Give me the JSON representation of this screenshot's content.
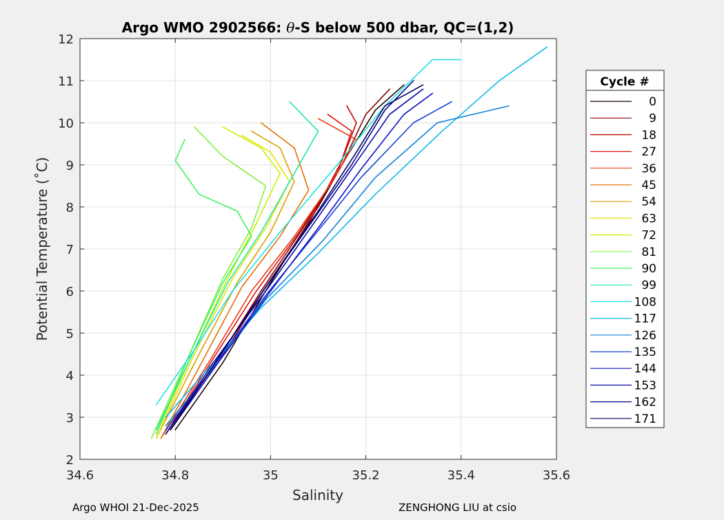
{
  "chart_data": {
    "type": "line",
    "title_prefix": "Argo WMO 2902566: ",
    "title_theta": "θ",
    "title_suffix": "-S below 500 dbar,  QC=(1,2)",
    "xlabel": "Salinity",
    "ylabel": "Potential Temperature (˚C)",
    "xlim": [
      34.6,
      35.6
    ],
    "ylim": [
      2,
      12
    ],
    "xticks": [
      34.6,
      34.8,
      35.0,
      35.2,
      35.4,
      35.6
    ],
    "xtick_labels": [
      "34.6",
      "34.8",
      "35",
      "35.2",
      "35.4",
      "35.6"
    ],
    "yticks": [
      2,
      3,
      4,
      5,
      6,
      7,
      8,
      9,
      10,
      11,
      12
    ],
    "ytick_labels": [
      "2",
      "3",
      "4",
      "5",
      "6",
      "7",
      "8",
      "9",
      "10",
      "11",
      "12"
    ],
    "grid": true,
    "legend": {
      "title": "Cycle #",
      "placement": "right",
      "entries": [
        "0",
        "9",
        "18",
        "27",
        "36",
        "45",
        "54",
        "63",
        "72",
        "81",
        "90",
        "99",
        "108",
        "117",
        "126",
        "135",
        "144",
        "153",
        "162",
        "171"
      ],
      "colors": [
        "#1a0000",
        "#8b0000",
        "#c00000",
        "#dd1010",
        "#e83a10",
        "#e07000",
        "#d8a000",
        "#e8e000",
        "#c8f000",
        "#80f040",
        "#40f060",
        "#20e8a0",
        "#20e0e0",
        "#10b8e8",
        "#1080d8",
        "#1040d0",
        "#1010c8",
        "#0808a8",
        "#000090",
        "#000060"
      ]
    },
    "series": [
      {
        "name": "0",
        "color": "#1a0000",
        "ts": [
          [
            34.8,
            2.7
          ],
          [
            34.9,
            4.3
          ],
          [
            35.0,
            6.2
          ],
          [
            35.1,
            8.0
          ],
          [
            35.16,
            9.2
          ],
          [
            35.22,
            10.3
          ],
          [
            35.28,
            10.9
          ]
        ]
      },
      {
        "name": "9",
        "color": "#8b0000",
        "ts": [
          [
            34.78,
            2.6
          ],
          [
            34.88,
            4.2
          ],
          [
            34.98,
            6.0
          ],
          [
            35.08,
            7.7
          ],
          [
            35.15,
            9.0
          ],
          [
            35.2,
            10.2
          ],
          [
            35.25,
            10.8
          ]
        ]
      },
      {
        "name": "18",
        "color": "#c00000",
        "ts": [
          [
            34.79,
            2.7
          ],
          [
            34.89,
            4.3
          ],
          [
            34.99,
            6.1
          ],
          [
            35.08,
            7.6
          ],
          [
            35.15,
            9.1
          ],
          [
            35.18,
            10.0
          ],
          [
            35.16,
            10.4
          ]
        ]
      },
      {
        "name": "27",
        "color": "#dd1010",
        "ts": [
          [
            34.78,
            2.6
          ],
          [
            34.88,
            4.4
          ],
          [
            34.97,
            6.0
          ],
          [
            35.06,
            7.4
          ],
          [
            35.14,
            8.8
          ],
          [
            35.17,
            9.8
          ],
          [
            35.12,
            10.2
          ]
        ]
      },
      {
        "name": "36",
        "color": "#e83a10",
        "ts": [
          [
            34.77,
            2.5
          ],
          [
            34.87,
            4.3
          ],
          [
            34.96,
            6.0
          ],
          [
            35.05,
            7.3
          ],
          [
            35.13,
            8.6
          ],
          [
            35.18,
            9.6
          ],
          [
            35.1,
            10.1
          ]
        ]
      },
      {
        "name": "45",
        "color": "#e07000",
        "ts": [
          [
            34.77,
            2.5
          ],
          [
            34.86,
            4.4
          ],
          [
            34.94,
            6.1
          ],
          [
            35.02,
            7.3
          ],
          [
            35.08,
            8.4
          ],
          [
            35.05,
            9.4
          ],
          [
            34.98,
            10.0
          ]
        ]
      },
      {
        "name": "54",
        "color": "#d8a000",
        "ts": [
          [
            34.76,
            2.5
          ],
          [
            34.85,
            4.5
          ],
          [
            34.93,
            6.2
          ],
          [
            35.0,
            7.4
          ],
          [
            35.05,
            8.6
          ],
          [
            35.02,
            9.4
          ],
          [
            34.96,
            9.8
          ]
        ]
      },
      {
        "name": "63",
        "color": "#e8e000",
        "ts": [
          [
            34.76,
            2.5
          ],
          [
            34.84,
            4.5
          ],
          [
            34.92,
            6.3
          ],
          [
            34.99,
            7.5
          ],
          [
            35.04,
            8.6
          ],
          [
            35.0,
            9.3
          ],
          [
            34.94,
            9.7
          ]
        ]
      },
      {
        "name": "72",
        "color": "#c8f000",
        "ts": [
          [
            34.76,
            2.6
          ],
          [
            34.84,
            4.6
          ],
          [
            34.91,
            6.3
          ],
          [
            34.97,
            7.6
          ],
          [
            35.02,
            8.8
          ],
          [
            34.98,
            9.4
          ],
          [
            34.9,
            9.9
          ]
        ]
      },
      {
        "name": "81",
        "color": "#80f040",
        "ts": [
          [
            34.75,
            2.5
          ],
          [
            34.83,
            4.5
          ],
          [
            34.9,
            6.3
          ],
          [
            34.96,
            7.5
          ],
          [
            34.99,
            8.5
          ],
          [
            34.9,
            9.2
          ],
          [
            34.84,
            9.9
          ]
        ]
      },
      {
        "name": "90",
        "color": "#40f060",
        "ts": [
          [
            34.76,
            2.6
          ],
          [
            34.83,
            4.5
          ],
          [
            34.9,
            6.2
          ],
          [
            34.96,
            7.3
          ],
          [
            34.93,
            7.9
          ],
          [
            34.85,
            8.3
          ],
          [
            34.8,
            9.1
          ],
          [
            34.82,
            9.6
          ]
        ]
      },
      {
        "name": "99",
        "color": "#20e8a0",
        "ts": [
          [
            34.76,
            2.7
          ],
          [
            34.84,
            4.6
          ],
          [
            34.91,
            6.2
          ],
          [
            34.98,
            7.4
          ],
          [
            35.05,
            8.8
          ],
          [
            35.1,
            9.8
          ],
          [
            35.04,
            10.5
          ]
        ]
      },
      {
        "name": "108",
        "color": "#20e0e0",
        "ts": [
          [
            34.76,
            3.3
          ],
          [
            34.84,
            4.6
          ],
          [
            34.92,
            6.0
          ],
          [
            35.02,
            7.4
          ],
          [
            35.14,
            9.0
          ],
          [
            35.24,
            10.4
          ],
          [
            35.34,
            11.5
          ],
          [
            35.4,
            11.5
          ]
        ]
      },
      {
        "name": "117",
        "color": "#10b8e8",
        "ts": [
          [
            34.78,
            3.0
          ],
          [
            34.88,
            4.3
          ],
          [
            34.98,
            5.6
          ],
          [
            35.1,
            6.9
          ],
          [
            35.22,
            8.3
          ],
          [
            35.36,
            9.8
          ],
          [
            35.48,
            11.0
          ],
          [
            35.58,
            11.8
          ]
        ]
      },
      {
        "name": "126",
        "color": "#1080d8",
        "ts": [
          [
            34.78,
            2.8
          ],
          [
            34.89,
            4.3
          ],
          [
            34.99,
            5.8
          ],
          [
            35.11,
            7.2
          ],
          [
            35.22,
            8.7
          ],
          [
            35.35,
            10.0
          ],
          [
            35.5,
            10.4
          ]
        ]
      },
      {
        "name": "135",
        "color": "#1040d0",
        "ts": [
          [
            34.78,
            2.7
          ],
          [
            34.88,
            4.2
          ],
          [
            34.99,
            5.9
          ],
          [
            35.09,
            7.3
          ],
          [
            35.19,
            8.7
          ],
          [
            35.3,
            10.0
          ],
          [
            35.38,
            10.5
          ]
        ]
      },
      {
        "name": "144",
        "color": "#1010c8",
        "ts": [
          [
            34.79,
            2.7
          ],
          [
            34.89,
            4.3
          ],
          [
            35.0,
            6.0
          ],
          [
            35.1,
            7.5
          ],
          [
            35.19,
            8.9
          ],
          [
            35.28,
            10.2
          ],
          [
            35.34,
            10.7
          ]
        ]
      },
      {
        "name": "153",
        "color": "#0808a8",
        "ts": [
          [
            34.78,
            2.6
          ],
          [
            34.88,
            4.3
          ],
          [
            34.99,
            6.0
          ],
          [
            35.09,
            7.6
          ],
          [
            35.17,
            8.9
          ],
          [
            35.25,
            10.2
          ],
          [
            35.32,
            10.8
          ]
        ]
      },
      {
        "name": "162",
        "color": "#000090",
        "ts": [
          [
            34.79,
            2.7
          ],
          [
            34.89,
            4.4
          ],
          [
            34.99,
            6.1
          ],
          [
            35.09,
            7.7
          ],
          [
            35.17,
            9.0
          ],
          [
            35.24,
            10.3
          ],
          [
            35.3,
            11.0
          ]
        ]
      },
      {
        "name": "171",
        "color": "#000060",
        "ts": [
          [
            34.79,
            2.7
          ],
          [
            34.89,
            4.4
          ],
          [
            34.99,
            6.1
          ],
          [
            35.1,
            7.9
          ],
          [
            35.18,
            9.3
          ],
          [
            35.24,
            10.4
          ],
          [
            35.32,
            10.9
          ]
        ]
      }
    ]
  },
  "footer": {
    "left": "Argo WHOI 21-Dec-2025",
    "right": "ZENGHONG LIU at csio"
  }
}
